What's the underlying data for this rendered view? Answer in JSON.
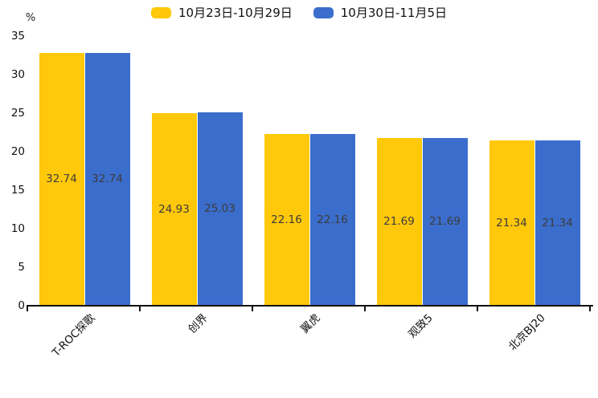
{
  "legend": {
    "items": [
      {
        "label": "10月23日-10月29日",
        "color": "#FFC80A"
      },
      {
        "label": "10月30日-11月5日",
        "color": "#3B6DCC"
      }
    ]
  },
  "chart_data": {
    "type": "bar",
    "categories": [
      "T-ROC探歌",
      "创界",
      "翼虎",
      "观致5",
      "北京BJ20"
    ],
    "series": [
      {
        "name": "10月23日-10月29日",
        "color": "#FFC80A",
        "values": [
          32.74,
          24.93,
          22.16,
          21.69,
          21.34
        ]
      },
      {
        "name": "10月30日-11月5日",
        "color": "#3B6DCC",
        "values": [
          32.74,
          25.03,
          22.16,
          21.69,
          21.34
        ]
      }
    ],
    "value_labels": [
      "32.74",
      "24.93",
      "22.16",
      "21.69",
      "21.34",
      "32.74",
      "25.03",
      "22.16",
      "21.69",
      "21.34"
    ],
    "title": "",
    "xlabel": "",
    "ylabel": "%",
    "ylim": [
      0,
      35
    ],
    "yticks": [
      0,
      5,
      10,
      15,
      20,
      25,
      30,
      35
    ],
    "grid": false,
    "legend_position": "top-center"
  }
}
